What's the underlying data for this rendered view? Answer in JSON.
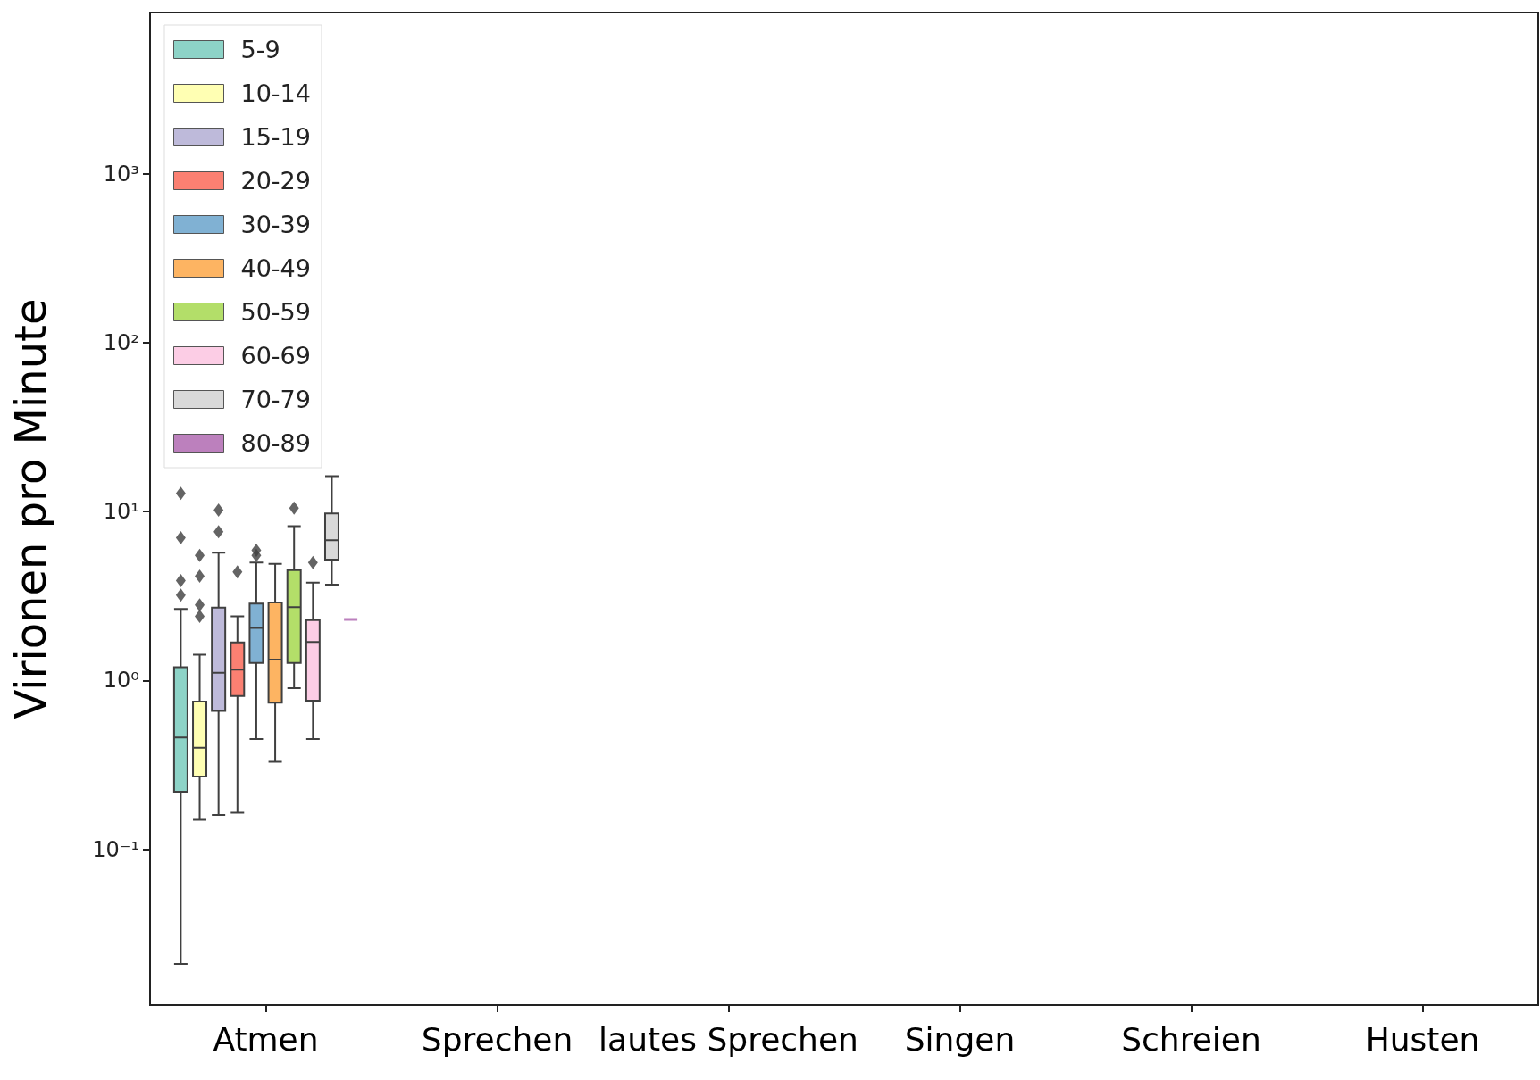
{
  "chart_data": {
    "type": "box",
    "ylabel": "Virionen pro Minute",
    "categories": [
      "Atmen",
      "Sprechen",
      "lautes Sprechen",
      "Singen",
      "Schreien",
      "Husten"
    ],
    "log": "y",
    "ylim": [
      0.012,
      9000
    ],
    "yticks": [
      {
        "value": 0.1,
        "label": "10⁻¹"
      },
      {
        "value": 1,
        "label": "10⁰"
      },
      {
        "value": 10,
        "label": "10¹"
      },
      {
        "value": 100,
        "label": "10²"
      },
      {
        "value": 1000,
        "label": "10³"
      }
    ],
    "legend": "top left",
    "grid": false,
    "marker": "diamond",
    "series": [
      {
        "name": "5-9",
        "color": "#8dd3c7",
        "boxes": [
          {
            "low": 0.021,
            "q1": 0.22,
            "median": 0.46,
            "q3": 1.2,
            "high": 2.65,
            "outliers": [
              3.2,
              3.9,
              7.0,
              12.8
            ]
          },
          null,
          null,
          null,
          null,
          null
        ]
      },
      {
        "name": "10-14",
        "color": "#ffffb3",
        "boxes": [
          {
            "low": 0.15,
            "q1": 0.27,
            "median": 0.4,
            "q3": 0.75,
            "high": 1.42,
            "outliers": [
              2.4,
              2.8,
              4.15,
              5.5
            ]
          },
          null,
          null,
          null,
          null,
          null
        ]
      },
      {
        "name": "15-19",
        "color": "#bebada",
        "boxes": [
          {
            "low": 0.16,
            "q1": 0.66,
            "median": 1.11,
            "q3": 2.7,
            "high": 5.7,
            "outliers": [
              7.6,
              10.2
            ]
          },
          null,
          null,
          null,
          null,
          null
        ]
      },
      {
        "name": "20-29",
        "color": "#fb8072",
        "boxes": [
          {
            "low": 0.165,
            "q1": 0.81,
            "median": 1.16,
            "q3": 1.68,
            "high": 2.4,
            "outliers": [
              4.4
            ]
          },
          null,
          null,
          null,
          null,
          null
        ]
      },
      {
        "name": "30-39",
        "color": "#80b1d3",
        "boxes": [
          {
            "low": 0.45,
            "q1": 1.27,
            "median": 2.05,
            "q3": 2.85,
            "high": 5.0,
            "outliers": [
              5.5,
              5.9
            ]
          },
          null,
          null,
          null,
          null,
          null
        ]
      },
      {
        "name": "40-49",
        "color": "#fdb462",
        "boxes": [
          {
            "low": 0.33,
            "q1": 0.74,
            "median": 1.33,
            "q3": 2.9,
            "high": 4.9
          },
          null,
          null,
          null,
          null,
          null
        ]
      },
      {
        "name": "50-59",
        "color": "#b3de69",
        "boxes": [
          {
            "low": 0.9,
            "q1": 1.27,
            "median": 2.72,
            "q3": 4.5,
            "high": 8.2,
            "outliers": [
              10.5
            ]
          },
          null,
          null,
          null,
          null,
          null
        ]
      },
      {
        "name": "60-69",
        "color": "#fccde5",
        "boxes": [
          {
            "low": 0.45,
            "q1": 0.76,
            "median": 1.69,
            "q3": 2.28,
            "high": 3.8,
            "outliers": [
              5.0
            ]
          },
          null,
          null,
          null,
          null,
          null
        ]
      },
      {
        "name": "70-79",
        "color": "#d9d9d9",
        "boxes": [
          {
            "low": 3.7,
            "q1": 5.2,
            "median": 6.76,
            "q3": 9.75,
            "high": 16.2
          },
          null,
          null,
          null,
          null,
          null
        ]
      },
      {
        "name": "80-89",
        "color": "#bc80bd",
        "boxes": [
          {
            "low": 2.3,
            "q1": 2.3,
            "median": 2.3,
            "q3": 2.3,
            "high": 2.3
          },
          null,
          null,
          null,
          null,
          null
        ]
      }
    ]
  }
}
